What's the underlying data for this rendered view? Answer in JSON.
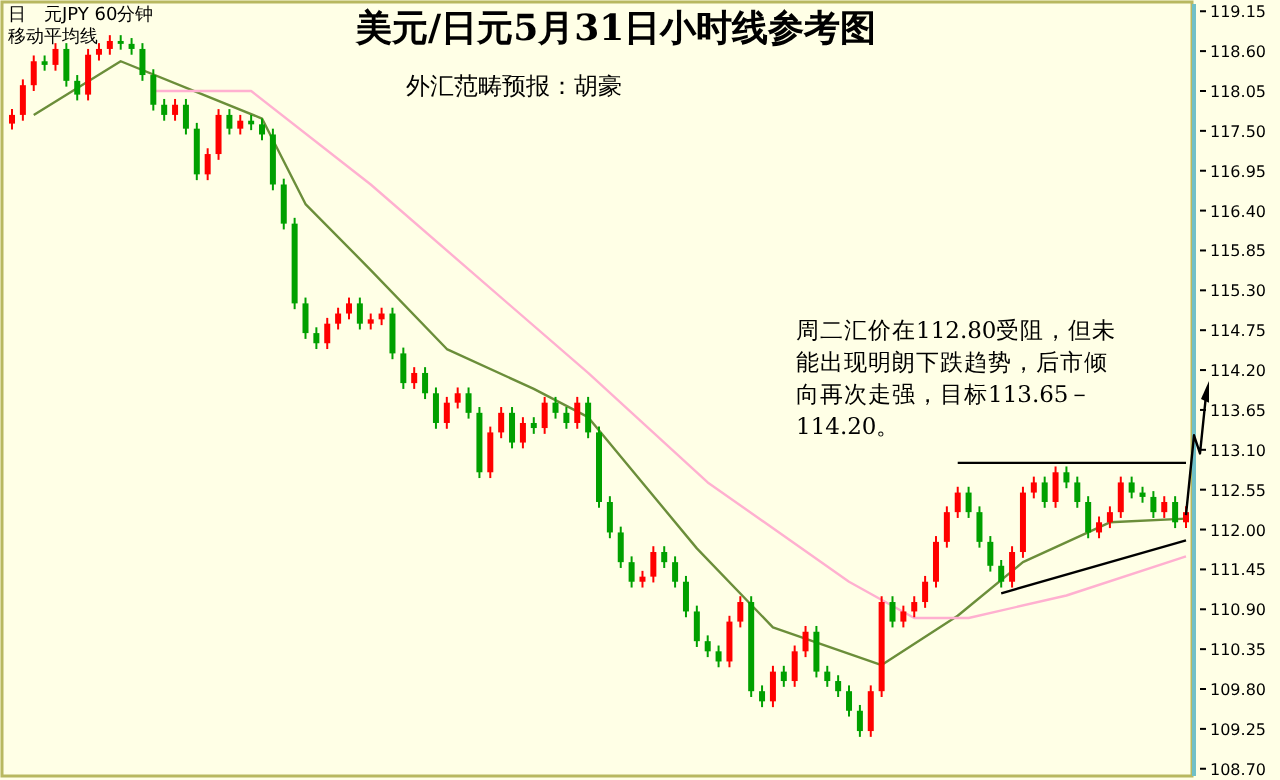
{
  "chart_data": {
    "type": "candlestick",
    "title": "美元/日元5月31日小时线参考图",
    "subtitle": "外汇范畴预报：胡豪",
    "annotations": [
      "日　元JPY 60分钟",
      "移动平均线",
      "周二汇价在112.80受阻，但未能出现明朗下跌趋势，后市倾向再次走强，目标113.65－114.20。"
    ],
    "categories": [
      null,
      null,
      null,
      null,
      null,
      null,
      null,
      null,
      null,
      null,
      null,
      null,
      null,
      null,
      null,
      null,
      null,
      null,
      null,
      null,
      null,
      null,
      null,
      null,
      null,
      null,
      null,
      null,
      null,
      null,
      null,
      null,
      null,
      null,
      null,
      null,
      null,
      null,
      null,
      null,
      null,
      null,
      null,
      null,
      null,
      null,
      null,
      null,
      null,
      null,
      null,
      null,
      null,
      null,
      null,
      null,
      null,
      null,
      null,
      null,
      null,
      null,
      null,
      null,
      null,
      null,
      null,
      null,
      null,
      null,
      null,
      null,
      null,
      null,
      null,
      null,
      null,
      null,
      null,
      null,
      null,
      null,
      null,
      null,
      null,
      null,
      null,
      null,
      null,
      null,
      null,
      null,
      null,
      null,
      null,
      null,
      null,
      null,
      null,
      null,
      null,
      null,
      null,
      null,
      null,
      null,
      null,
      null,
      null
    ],
    "ohlc": [
      [
        117.6,
        117.8,
        117.52,
        117.72
      ],
      [
        117.72,
        118.21,
        117.64,
        118.13
      ],
      [
        118.13,
        118.54,
        118.05,
        118.46
      ],
      [
        118.46,
        118.54,
        118.33,
        118.41
      ],
      [
        118.41,
        118.71,
        118.33,
        118.63
      ],
      [
        118.63,
        118.71,
        118.11,
        118.19
      ],
      [
        118.19,
        118.27,
        117.92,
        118.0
      ],
      [
        118.0,
        118.63,
        117.92,
        118.55
      ],
      [
        118.55,
        118.71,
        118.47,
        118.63
      ],
      [
        118.63,
        118.82,
        118.55,
        118.74
      ],
      [
        118.74,
        118.82,
        118.62,
        118.7
      ],
      [
        118.7,
        118.78,
        118.55,
        118.63
      ],
      [
        118.63,
        118.71,
        118.19,
        118.27
      ],
      [
        118.27,
        118.35,
        117.78,
        117.86
      ],
      [
        117.86,
        117.94,
        117.64,
        117.72
      ],
      [
        117.72,
        117.94,
        117.64,
        117.86
      ],
      [
        117.86,
        117.94,
        117.45,
        117.53
      ],
      [
        117.53,
        117.61,
        116.82,
        116.9
      ],
      [
        116.9,
        117.26,
        116.82,
        117.18
      ],
      [
        117.18,
        117.8,
        117.1,
        117.72
      ],
      [
        117.72,
        117.8,
        117.45,
        117.53
      ],
      [
        117.53,
        117.72,
        117.45,
        117.64
      ],
      [
        117.64,
        117.72,
        117.51,
        117.59
      ],
      [
        117.59,
        117.67,
        117.37,
        117.45
      ],
      [
        117.45,
        117.53,
        116.68,
        116.76
      ],
      [
        116.76,
        116.84,
        116.14,
        116.22
      ],
      [
        116.22,
        116.3,
        115.04,
        115.12
      ],
      [
        115.12,
        115.2,
        114.63,
        114.71
      ],
      [
        114.71,
        114.79,
        114.49,
        114.57
      ],
      [
        114.57,
        114.92,
        114.49,
        114.84
      ],
      [
        114.84,
        115.06,
        114.76,
        114.98
      ],
      [
        114.98,
        115.2,
        114.9,
        115.12
      ],
      [
        115.12,
        115.2,
        114.76,
        114.84
      ],
      [
        114.84,
        114.98,
        114.76,
        114.9
      ],
      [
        114.9,
        115.06,
        114.82,
        114.98
      ],
      [
        114.98,
        115.06,
        114.35,
        114.43
      ],
      [
        114.43,
        114.51,
        113.94,
        114.02
      ],
      [
        114.02,
        114.24,
        113.94,
        114.16
      ],
      [
        114.16,
        114.24,
        113.8,
        113.88
      ],
      [
        113.88,
        113.96,
        113.39,
        113.47
      ],
      [
        113.47,
        113.83,
        113.39,
        113.75
      ],
      [
        113.75,
        113.96,
        113.67,
        113.88
      ],
      [
        113.88,
        113.96,
        113.53,
        113.61
      ],
      [
        113.61,
        113.69,
        112.71,
        112.79
      ],
      [
        112.79,
        113.42,
        112.71,
        113.34
      ],
      [
        113.34,
        113.69,
        113.26,
        113.61
      ],
      [
        113.61,
        113.69,
        113.12,
        113.2
      ],
      [
        113.2,
        113.55,
        113.12,
        113.47
      ],
      [
        113.47,
        113.55,
        113.32,
        113.4
      ],
      [
        113.4,
        113.83,
        113.32,
        113.75
      ],
      [
        113.75,
        113.83,
        113.53,
        113.61
      ],
      [
        113.61,
        113.69,
        113.39,
        113.47
      ],
      [
        113.47,
        113.83,
        113.39,
        113.75
      ],
      [
        113.75,
        113.83,
        113.26,
        113.34
      ],
      [
        113.34,
        113.42,
        112.3,
        112.38
      ],
      [
        112.38,
        112.46,
        111.88,
        111.96
      ],
      [
        111.96,
        112.04,
        111.47,
        111.55
      ],
      [
        111.55,
        111.63,
        111.2,
        111.28
      ],
      [
        111.28,
        111.43,
        111.2,
        111.35
      ],
      [
        111.35,
        111.77,
        111.27,
        111.69
      ],
      [
        111.69,
        111.77,
        111.47,
        111.55
      ],
      [
        111.55,
        111.63,
        111.2,
        111.28
      ],
      [
        111.28,
        111.36,
        110.79,
        110.87
      ],
      [
        110.87,
        110.95,
        110.38,
        110.46
      ],
      [
        110.46,
        110.54,
        110.24,
        110.32
      ],
      [
        110.32,
        110.4,
        110.1,
        110.18
      ],
      [
        110.18,
        110.81,
        110.1,
        110.73
      ],
      [
        110.73,
        111.08,
        110.65,
        111.0
      ],
      [
        111.0,
        111.08,
        109.69,
        109.77
      ],
      [
        109.77,
        109.85,
        109.55,
        109.63
      ],
      [
        109.63,
        110.12,
        109.55,
        110.04
      ],
      [
        110.04,
        110.12,
        109.83,
        109.91
      ],
      [
        109.91,
        110.4,
        109.83,
        110.32
      ],
      [
        110.32,
        110.67,
        110.24,
        110.59
      ],
      [
        110.59,
        110.67,
        109.96,
        110.04
      ],
      [
        110.04,
        110.12,
        109.83,
        109.91
      ],
      [
        109.91,
        109.99,
        109.69,
        109.77
      ],
      [
        109.77,
        109.85,
        109.42,
        109.5
      ],
      [
        109.5,
        109.58,
        109.14,
        109.22
      ],
      [
        109.22,
        109.85,
        109.14,
        109.77
      ],
      [
        109.77,
        111.08,
        109.69,
        111.0
      ],
      [
        111.0,
        111.08,
        110.65,
        110.73
      ],
      [
        110.73,
        110.95,
        110.65,
        110.87
      ],
      [
        110.87,
        111.08,
        110.79,
        111.0
      ],
      [
        111.0,
        111.36,
        110.92,
        111.28
      ],
      [
        111.28,
        111.91,
        111.2,
        111.83
      ],
      [
        111.83,
        112.32,
        111.75,
        112.24
      ],
      [
        112.24,
        112.59,
        112.16,
        112.51
      ],
      [
        112.51,
        112.59,
        112.16,
        112.24
      ],
      [
        112.24,
        112.32,
        111.75,
        111.83
      ],
      [
        111.83,
        111.91,
        111.42,
        111.5
      ],
      [
        111.5,
        111.58,
        111.2,
        111.28
      ],
      [
        111.28,
        111.77,
        111.2,
        111.69
      ],
      [
        111.69,
        112.59,
        111.61,
        112.51
      ],
      [
        112.51,
        112.73,
        112.43,
        112.65
      ],
      [
        112.65,
        112.73,
        112.3,
        112.38
      ],
      [
        112.38,
        112.87,
        112.3,
        112.79
      ],
      [
        112.79,
        112.87,
        112.57,
        112.65
      ],
      [
        112.65,
        112.73,
        112.3,
        112.38
      ],
      [
        112.38,
        112.46,
        111.88,
        111.96
      ],
      [
        111.96,
        112.18,
        111.88,
        112.1
      ],
      [
        112.1,
        112.32,
        112.02,
        112.24
      ],
      [
        112.24,
        112.73,
        112.16,
        112.65
      ],
      [
        112.65,
        112.73,
        112.43,
        112.51
      ],
      [
        112.51,
        112.59,
        112.37,
        112.45
      ],
      [
        112.45,
        112.53,
        112.16,
        112.24
      ],
      [
        112.24,
        112.46,
        112.16,
        112.38
      ],
      [
        112.38,
        112.46,
        112.02,
        112.1
      ],
      [
        112.1,
        112.32,
        112.02,
        112.24
      ]
    ],
    "series": [
      {
        "type": "line",
        "color": "#6b8e3a",
        "values": [
          null,
          null,
          117.72,
          null,
          null,
          null,
          null,
          null,
          null,
          null,
          118.46,
          null,
          null,
          null,
          null,
          null,
          null,
          null,
          null,
          null,
          null,
          null,
          null,
          117.67,
          null,
          null,
          null,
          116.49,
          null,
          null,
          null,
          null,
          null,
          115.58,
          null,
          null,
          null,
          null,
          null,
          null,
          114.49,
          null,
          null,
          null,
          null,
          null,
          null,
          null,
          113.94,
          null,
          null,
          null,
          null,
          113.55,
          null,
          null,
          null,
          null,
          null,
          null,
          null,
          null,
          null,
          111.74,
          null,
          null,
          null,
          null,
          null,
          null,
          110.65,
          null,
          null,
          null,
          null,
          null,
          null,
          null,
          null,
          null,
          110.13,
          null,
          null,
          null,
          null,
          null,
          null,
          110.81,
          null,
          null,
          null,
          null,
          null,
          111.55,
          null,
          null,
          null,
          null,
          null,
          null,
          null,
          112.1,
          null,
          null,
          null,
          null,
          null,
          null,
          112.15
        ]
      },
      {
        "type": "line",
        "color": "#ffb0d0",
        "values": [
          null,
          null,
          null,
          null,
          null,
          null,
          null,
          null,
          null,
          null,
          null,
          null,
          null,
          118.05,
          null,
          null,
          null,
          null,
          null,
          null,
          null,
          null,
          118.05,
          null,
          null,
          null,
          null,
          null,
          null,
          null,
          null,
          null,
          null,
          116.76,
          null,
          null,
          null,
          null,
          null,
          null,
          null,
          null,
          null,
          null,
          null,
          null,
          null,
          null,
          null,
          null,
          null,
          null,
          null,
          114.16,
          null,
          null,
          null,
          null,
          null,
          null,
          null,
          null,
          null,
          null,
          112.65,
          null,
          null,
          null,
          null,
          null,
          null,
          null,
          null,
          null,
          null,
          null,
          null,
          111.28,
          null,
          null,
          null,
          null,
          null,
          110.78,
          null,
          null,
          null,
          null,
          110.78,
          null,
          null,
          null,
          null,
          null,
          null,
          null,
          null,
          111.09,
          null,
          null,
          null,
          null,
          null,
          null,
          null,
          null,
          null,
          null,
          111.63
        ]
      },
      {
        "type": "line",
        "color": "#000000",
        "values": [
          null,
          null,
          null,
          null,
          null,
          null,
          null,
          null,
          null,
          null,
          null,
          null,
          null,
          null,
          null,
          null,
          null,
          null,
          null,
          null,
          null,
          null,
          null,
          null,
          null,
          null,
          null,
          null,
          null,
          null,
          null,
          null,
          null,
          null,
          null,
          null,
          null,
          null,
          null,
          null,
          null,
          null,
          null,
          null,
          null,
          null,
          null,
          null,
          null,
          null,
          null,
          null,
          null,
          null,
          null,
          null,
          null,
          null,
          null,
          null,
          null,
          null,
          null,
          null,
          null,
          null,
          null,
          null,
          null,
          null,
          null,
          null,
          null,
          null,
          null,
          null,
          null,
          null,
          null,
          null,
          null,
          null,
          null,
          null,
          null,
          null,
          null,
          112.92,
          null,
          null,
          null,
          null,
          null,
          null,
          null,
          null,
          null,
          null,
          null,
          null,
          null,
          null,
          null,
          null,
          null,
          null,
          null,
          null,
          112.92
        ]
      },
      {
        "type": "line",
        "color": "#000000",
        "values": [
          null,
          null,
          null,
          null,
          null,
          null,
          null,
          null,
          null,
          null,
          null,
          null,
          null,
          null,
          null,
          null,
          null,
          null,
          null,
          null,
          null,
          null,
          null,
          null,
          null,
          null,
          null,
          null,
          null,
          null,
          null,
          null,
          null,
          null,
          null,
          null,
          null,
          null,
          null,
          null,
          null,
          null,
          null,
          null,
          null,
          null,
          null,
          null,
          null,
          null,
          null,
          null,
          null,
          null,
          null,
          null,
          null,
          null,
          null,
          null,
          null,
          null,
          null,
          null,
          null,
          null,
          null,
          null,
          null,
          null,
          null,
          null,
          null,
          null,
          null,
          null,
          null,
          null,
          null,
          null,
          null,
          null,
          null,
          null,
          null,
          null,
          null,
          null,
          null,
          null,
          null,
          111.12,
          null,
          null,
          null,
          null,
          null,
          null,
          null,
          null,
          null,
          null,
          null,
          null,
          null,
          null,
          null,
          null,
          111.85
        ]
      }
    ],
    "ylim": [
      108.6,
      119.25
    ],
    "yticks": [
      119.15,
      {
        "value": 118.6,
        "label": "118.60"
      },
      118.05,
      {
        "value": 117.5,
        "label": "117.50"
      },
      116.95,
      {
        "value": 116.4,
        "label": "116.40"
      },
      115.85,
      {
        "value": 115.3,
        "label": "115.30"
      },
      114.75,
      {
        "value": 114.2,
        "label": "114.20"
      },
      113.65,
      {
        "value": 113.1,
        "label": "113.10"
      },
      112.55,
      {
        "value": 112.0,
        "label": "112.00"
      },
      111.45,
      {
        "value": 110.9,
        "label": "110.90"
      },
      110.35,
      {
        "value": 109.8,
        "label": "109.80"
      },
      109.25,
      {
        "value": 108.7,
        "label": "108.70"
      }
    ]
  }
}
